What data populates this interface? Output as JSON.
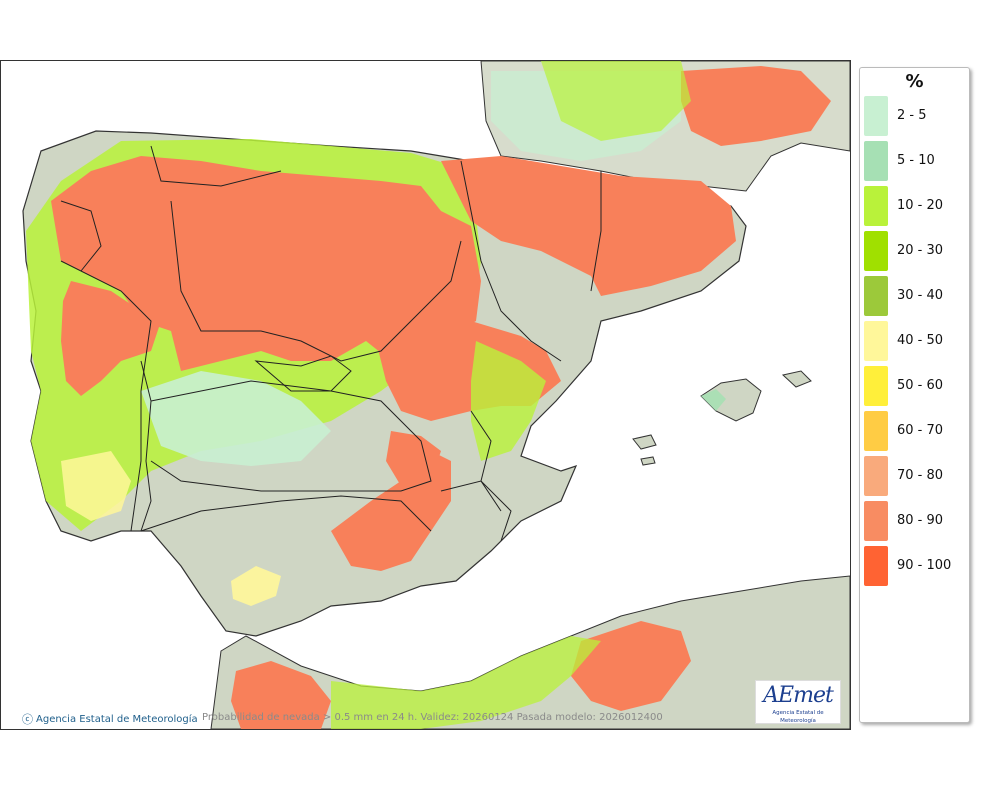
{
  "legend": {
    "unit": "%",
    "items": [
      {
        "label": "2 - 5",
        "color": "#c8f0d2"
      },
      {
        "label": "5 - 10",
        "color": "#a6e0b4"
      },
      {
        "label": "10 - 20",
        "color": "#b9f23a"
      },
      {
        "label": "20 - 30",
        "color": "#a0e000"
      },
      {
        "label": "30 - 40",
        "color": "#9cc93a"
      },
      {
        "label": "40 - 50",
        "color": "#fff79a"
      },
      {
        "label": "50 - 60",
        "color": "#ffef3a"
      },
      {
        "label": "60 - 70",
        "color": "#ffcc44"
      },
      {
        "label": "70 - 80",
        "color": "#f9aa7c"
      },
      {
        "label": "80 - 90",
        "color": "#f88c62"
      },
      {
        "label": "90 - 100",
        "color": "#ff6333"
      }
    ]
  },
  "credit": "Agencia Estatal de Meteorología",
  "caption": "Probabilidad de nevada > 0.5 mm en 24 h. Validez: 20260124 Pasada modelo: 2026012400",
  "logo": {
    "mark": "AEmet",
    "subtitle": "Agencia Estatal de Meteorología"
  }
}
